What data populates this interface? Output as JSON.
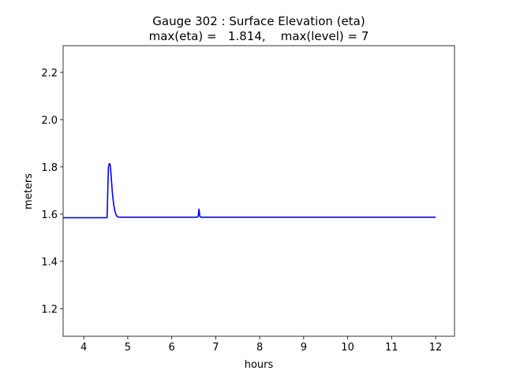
{
  "chart_data": {
    "type": "line",
    "title": "Gauge 302 : Surface Elevation (eta)",
    "subtitle": "max(eta) =   1.814,    max(level) = 7",
    "xlabel": "hours",
    "ylabel": "meters",
    "xlim": [
      3.53,
      12.43
    ],
    "ylim": [
      1.083,
      2.313
    ],
    "xticks": [
      4,
      5,
      6,
      7,
      8,
      9,
      10,
      11,
      12
    ],
    "yticks": [
      1.2,
      1.4,
      1.6,
      1.8,
      2.0,
      2.2
    ],
    "ytick_labels": [
      "1.2",
      "1.4",
      "1.6",
      "1.8",
      "2.0",
      "2.2"
    ],
    "grid": false,
    "series": [
      {
        "name": "eta",
        "color": "#0000ff",
        "x": [
          3.53,
          4.53,
          4.545,
          4.56,
          4.58,
          4.6,
          4.62,
          4.65,
          4.68,
          4.71,
          4.74,
          4.77,
          4.85,
          6.58,
          6.6,
          6.62,
          6.64,
          6.66,
          8.0,
          12.0
        ],
        "y": [
          1.585,
          1.585,
          1.7,
          1.8,
          1.814,
          1.81,
          1.77,
          1.69,
          1.64,
          1.61,
          1.595,
          1.588,
          1.587,
          1.587,
          1.59,
          1.621,
          1.59,
          1.587,
          1.587,
          1.587
        ]
      }
    ]
  }
}
